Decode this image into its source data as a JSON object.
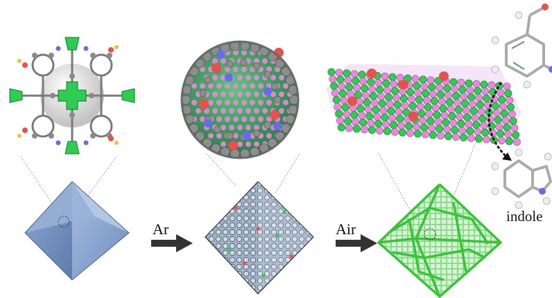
{
  "labels": {
    "step1": "Ar",
    "step2": "Air",
    "product": "indole"
  },
  "colors": {
    "octahedron_blue": "#6f8fbf",
    "cluster_green": "#2ecc52",
    "atom_gray": "#8a8a8a",
    "atom_red": "#e85050",
    "atom_blue": "#6a6af0",
    "atom_pink": "#e68ad8",
    "arrow": "#333333"
  },
  "icons": [
    "mof-cluster-model",
    "cage-structure-model",
    "layered-sheet-model",
    "octahedron-crystal",
    "octahedron-with-nodes",
    "hollow-octahedron-frame",
    "nitro-aldehyde-molecule",
    "indole-molecule",
    "process-arrow"
  ]
}
